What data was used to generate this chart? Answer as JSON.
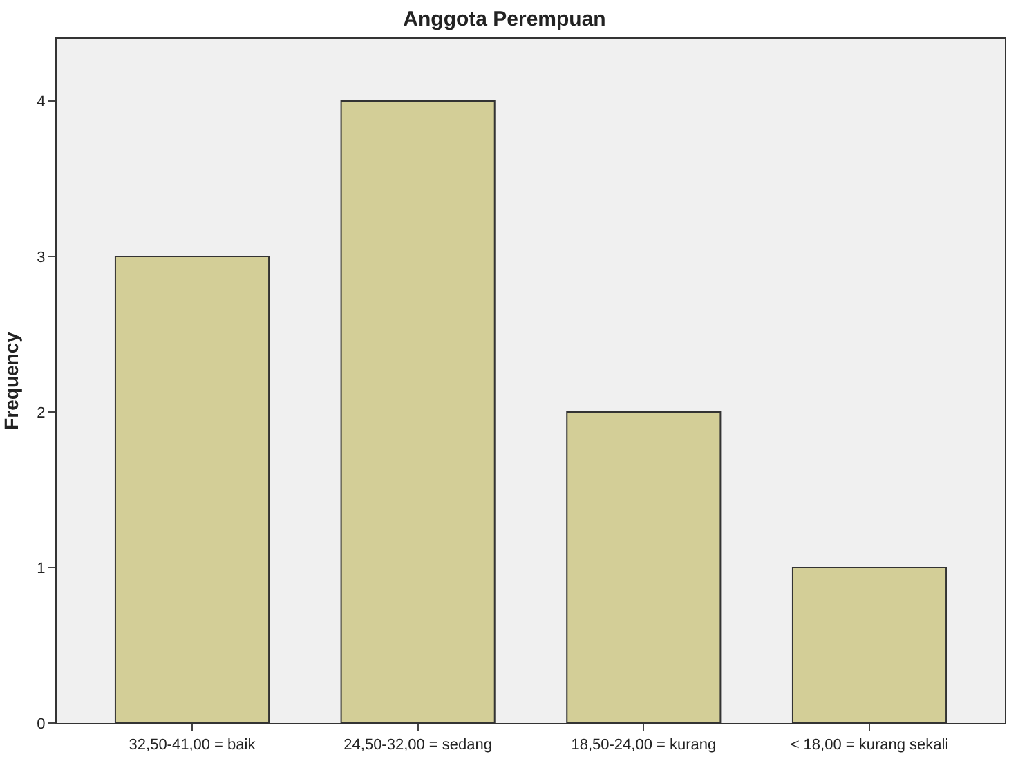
{
  "chart_data": {
    "type": "bar",
    "title": "Anggota Perempuan",
    "ylabel": "Frequency",
    "categories": [
      "32,50-41,00 = baik",
      "24,50-32,00 = sedang",
      "18,50-24,00 = kurang",
      "< 18,00 = kurang sekali"
    ],
    "values": [
      3,
      4,
      2,
      1
    ],
    "color": "#d3ce97",
    "ylim": [
      0,
      4.4
    ],
    "yticks": [
      0,
      1,
      2,
      3,
      4
    ],
    "grid": false
  }
}
